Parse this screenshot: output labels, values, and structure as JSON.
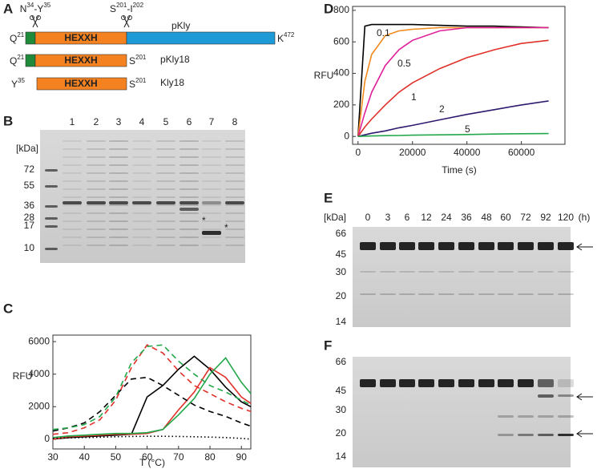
{
  "panel_labels": [
    "A",
    "B",
    "C",
    "D",
    "E",
    "F"
  ],
  "panel_a": {
    "cut_sites": [
      {
        "left": "N",
        "left_pos": "34",
        "right": "-Y",
        "right_pos": "35"
      },
      {
        "left": "S",
        "left_pos": "201",
        "right": "-I",
        "right_pos": "202"
      }
    ],
    "constructs": [
      {
        "start": "Q",
        "start_pos": "21",
        "motif": "HEXXH",
        "end": "K",
        "end_pos": "472",
        "name": "pKly"
      },
      {
        "start": "Q",
        "start_pos": "21",
        "motif": "HEXXH",
        "end": "S",
        "end_pos": "201",
        "name": "pKly18"
      },
      {
        "start": "Y",
        "start_pos": "35",
        "motif": "HEXXH",
        "end": "S",
        "end_pos": "201",
        "name": "Kly18"
      }
    ]
  },
  "panel_b": {
    "unit": "[kDa]",
    "markers": [
      "72",
      "55",
      "36",
      "28",
      "17",
      "10"
    ],
    "lanes": [
      "1",
      "2",
      "3",
      "4",
      "5",
      "6",
      "7",
      "8"
    ],
    "stars": [
      "*",
      "*"
    ]
  },
  "panel_e": {
    "unit": "[kDa]",
    "markers": [
      "66",
      "45",
      "30",
      "20",
      "14"
    ],
    "times": [
      "0",
      "3",
      "6",
      "12",
      "24",
      "36",
      "48",
      "60",
      "72",
      "92",
      "120"
    ],
    "time_unit": "(h)"
  },
  "panel_f": {
    "markers": [
      "66",
      "45",
      "30",
      "20",
      "14"
    ]
  },
  "chart_data": [
    {
      "type": "line",
      "xlabel": "T (°C)",
      "ylabel": "RFU",
      "x": [
        30,
        35,
        40,
        45,
        50,
        55,
        60,
        65,
        70,
        75,
        80,
        85,
        90,
        93
      ],
      "xlim": [
        30,
        93
      ],
      "ylim": [
        -600,
        6400
      ],
      "xticks": [
        30,
        40,
        50,
        60,
        70,
        80,
        90
      ],
      "yticks": [
        0,
        2000,
        4000,
        6000
      ],
      "series": [
        {
          "color": "#000000",
          "style": "solid",
          "values": [
            0,
            100,
            150,
            200,
            250,
            300,
            2600,
            3300,
            4300,
            5100,
            4300,
            3200,
            2300,
            2000
          ]
        },
        {
          "color": "#e0302a",
          "style": "solid",
          "values": [
            0,
            150,
            200,
            250,
            300,
            300,
            350,
            600,
            1800,
            2900,
            4400,
            3800,
            2600,
            2200
          ]
        },
        {
          "color": "#22a84a",
          "style": "solid",
          "values": [
            100,
            200,
            250,
            300,
            350,
            350,
            400,
            600,
            1500,
            2500,
            4000,
            5000,
            3500,
            2800
          ]
        },
        {
          "color": "#000000",
          "style": "dashed",
          "values": [
            500,
            700,
            1000,
            1700,
            2700,
            3700,
            3800,
            3300,
            2700,
            2100,
            1700,
            1400,
            1000,
            800
          ]
        },
        {
          "color": "#e0302a",
          "style": "dashed",
          "values": [
            300,
            400,
            700,
            1200,
            2400,
            4400,
            5800,
            5300,
            4200,
            3300,
            2800,
            2300,
            1900,
            1700
          ]
        },
        {
          "color": "#22a84a",
          "style": "dashed",
          "values": [
            600,
            700,
            900,
            1400,
            2600,
            4700,
            5700,
            5800,
            4800,
            4000,
            3300,
            2900,
            2400,
            2100
          ]
        },
        {
          "color": "#000000",
          "style": "dotted",
          "values": [
            50,
            80,
            100,
            120,
            150,
            170,
            180,
            180,
            170,
            150,
            130,
            100,
            50,
            0
          ]
        }
      ]
    },
    {
      "type": "line",
      "xlabel": "Time (s)",
      "ylabel": "RFU",
      "x": [
        0,
        2500,
        5000,
        10000,
        15000,
        20000,
        30000,
        40000,
        50000,
        60000,
        70000
      ],
      "xlim": [
        -2000,
        76000
      ],
      "ylim": [
        -50,
        825
      ],
      "xticks": [
        0,
        20000,
        40000,
        60000
      ],
      "yticks": [
        0,
        200,
        400,
        600,
        800
      ],
      "annotations": [
        "0.1",
        "0.5",
        "1",
        "2",
        "5"
      ],
      "series": [
        {
          "color": "#000000",
          "style": "solid",
          "values": [
            0,
            700,
            710,
            710,
            710,
            710,
            705,
            700,
            700,
            695,
            690
          ]
        },
        {
          "color": "#f08a1c",
          "style": "solid",
          "values": [
            0,
            350,
            520,
            640,
            670,
            680,
            690,
            690,
            690,
            690,
            690
          ]
        },
        {
          "color": "#e0209a",
          "style": "solid",
          "values": [
            0,
            150,
            280,
            450,
            550,
            610,
            670,
            690,
            690,
            690,
            690
          ]
        },
        {
          "color": "#e0302a",
          "style": "solid",
          "values": [
            0,
            60,
            110,
            200,
            280,
            340,
            430,
            500,
            550,
            590,
            610
          ]
        },
        {
          "color": "#2e1a6e",
          "style": "solid",
          "values": [
            0,
            10,
            20,
            35,
            55,
            70,
            105,
            140,
            170,
            200,
            225
          ]
        },
        {
          "color": "#22a84a",
          "style": "solid",
          "values": [
            0,
            2,
            3,
            5,
            6,
            8,
            10,
            12,
            15,
            17,
            18
          ]
        }
      ]
    }
  ]
}
